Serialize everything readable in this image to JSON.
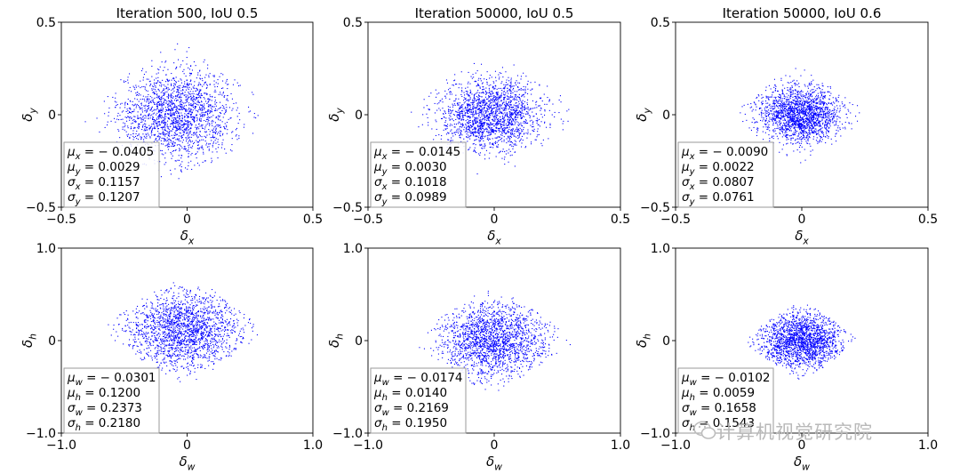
{
  "chart_data": [
    {
      "type": "scatter",
      "title": "Iteration 500, IoU 0.5",
      "xlabel": "δx",
      "ylabel": "δy",
      "xlim": [
        -0.5,
        0.5
      ],
      "ylim": [
        -0.5,
        0.5
      ],
      "xticks": [
        "-0.5",
        "0",
        "0.5"
      ],
      "yticks": [
        "0.5",
        "0",
        "-0.5"
      ],
      "stats": [
        "μx = − 0.0405",
        "μy = 0.0029",
        "σx = 0.1157",
        "σy = 0.1207"
      ],
      "mean": [
        -0.0405,
        0.0029
      ],
      "std": [
        0.1157,
        0.1207
      ],
      "half_width": [
        0.42,
        0.42
      ],
      "color": "#0000ff"
    },
    {
      "type": "scatter",
      "title": "Iteration 50000, IoU 0.5",
      "xlabel": "δx",
      "ylabel": "δy",
      "xlim": [
        -0.5,
        0.5
      ],
      "ylim": [
        -0.5,
        0.5
      ],
      "xticks": [
        "-0.5",
        "0",
        "0.5"
      ],
      "yticks": [
        "0.5",
        "0",
        "-0.5"
      ],
      "stats": [
        "μx = − 0.0145",
        "μy = 0.0030",
        "σx = 0.1018",
        "σy = 0.0989"
      ],
      "mean": [
        -0.0145,
        0.003
      ],
      "std": [
        0.1018,
        0.0989
      ],
      "half_width": [
        0.38,
        0.38
      ],
      "color": "#0000ff"
    },
    {
      "type": "scatter",
      "title": "Iteration 50000, IoU 0.6",
      "xlabel": "δx",
      "ylabel": "δy",
      "xlim": [
        -0.5,
        0.5
      ],
      "ylim": [
        -0.5,
        0.5
      ],
      "xticks": [
        "-0.5",
        "0",
        "0.5"
      ],
      "yticks": [
        "0.5",
        "0",
        "-0.5"
      ],
      "stats": [
        "μx = − 0.0090",
        "μy = 0.0022",
        "σx = 0.0807",
        "σy = 0.0761"
      ],
      "mean": [
        -0.009,
        0.0022
      ],
      "std": [
        0.0807,
        0.0761
      ],
      "half_width": [
        0.28,
        0.3
      ],
      "color": "#0000ff"
    },
    {
      "type": "scatter",
      "title": "",
      "xlabel": "δw",
      "ylabel": "δh",
      "xlim": [
        -1.0,
        1.0
      ],
      "ylim": [
        -1.0,
        1.0
      ],
      "xticks": [
        "-1.0",
        "0",
        "1.0"
      ],
      "yticks": [
        "1.0",
        "0",
        "-1.0"
      ],
      "stats": [
        "μw = − 0.0301",
        "μh = 0.1200",
        "σw = 0.2373",
        "σh = 0.2180"
      ],
      "mean": [
        -0.0301,
        0.12
      ],
      "std": [
        0.2373,
        0.218
      ],
      "half_width": [
        0.68,
        0.66
      ],
      "color": "#0000ff"
    },
    {
      "type": "scatter",
      "title": "",
      "xlabel": "δw",
      "ylabel": "δh",
      "xlim": [
        -1.0,
        1.0
      ],
      "ylim": [
        -1.0,
        1.0
      ],
      "xticks": [
        "-1.0",
        "0",
        "1.0"
      ],
      "yticks": [
        "1.0",
        "0",
        "-1.0"
      ],
      "stats": [
        "μw = − 0.0174",
        "μh = 0.0140",
        "σw = 0.2169",
        "σh = 0.1950"
      ],
      "mean": [
        -0.0174,
        0.014
      ],
      "std": [
        0.2169,
        0.195
      ],
      "half_width": [
        0.68,
        0.62
      ],
      "color": "#0000ff"
    },
    {
      "type": "scatter",
      "title": "",
      "xlabel": "δw",
      "ylabel": "δh",
      "xlim": [
        -1.0,
        1.0
      ],
      "ylim": [
        -1.0,
        1.0
      ],
      "xticks": [
        "-1.0",
        "0",
        "1.0"
      ],
      "yticks": [
        "1.0",
        "0",
        "-1.0"
      ],
      "stats": [
        "μw = − 0.0102",
        "μh = 0.0059",
        "σw = 0.1658",
        "σh = 0.1543"
      ],
      "mean": [
        -0.0102,
        0.0059
      ],
      "std": [
        0.1658,
        0.1543
      ],
      "half_width": [
        0.48,
        0.46
      ],
      "color": "#0000ff"
    }
  ],
  "watermark": {
    "text": "计算机视觉研究院",
    "icon": "wechat-icon"
  }
}
